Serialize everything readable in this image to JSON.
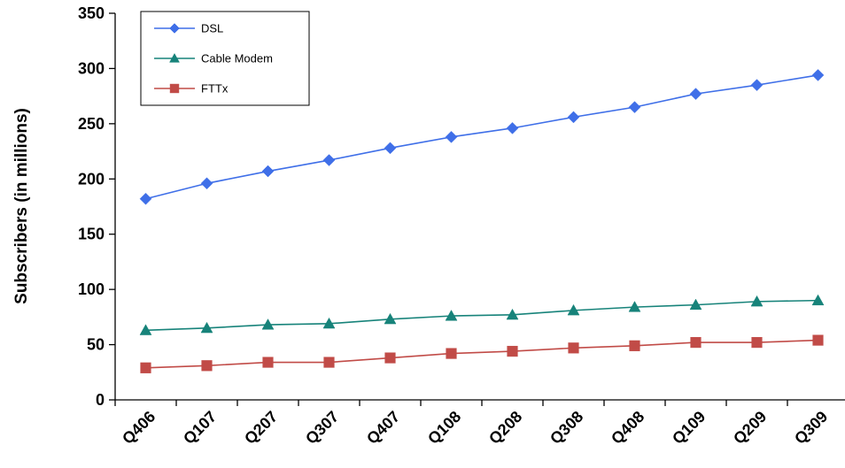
{
  "chart_data": {
    "type": "line",
    "categories": [
      "Q406",
      "Q107",
      "Q207",
      "Q307",
      "Q407",
      "Q108",
      "Q208",
      "Q308",
      "Q408",
      "Q109",
      "Q209",
      "Q309"
    ],
    "series": [
      {
        "name": "DSL",
        "marker": "diamond",
        "color": "#3f6fe8",
        "values": [
          182,
          196,
          207,
          217,
          228,
          238,
          246,
          256,
          265,
          277,
          285,
          294
        ]
      },
      {
        "name": "Cable Modem",
        "marker": "triangle",
        "color": "#17837a",
        "values": [
          63,
          65,
          68,
          69,
          73,
          76,
          77,
          81,
          84,
          86,
          89,
          90
        ]
      },
      {
        "name": "FTTx",
        "marker": "square",
        "color": "#c14b47",
        "values": [
          29,
          31,
          34,
          34,
          38,
          42,
          44,
          47,
          49,
          52,
          52,
          54
        ]
      }
    ],
    "ylabel": "Subscribers (in millions)",
    "xlabel": "",
    "ylim": [
      0,
      350
    ],
    "yticks": [
      0,
      50,
      100,
      150,
      200,
      250,
      300,
      350
    ],
    "grid": false,
    "legend_position": "top-left"
  }
}
